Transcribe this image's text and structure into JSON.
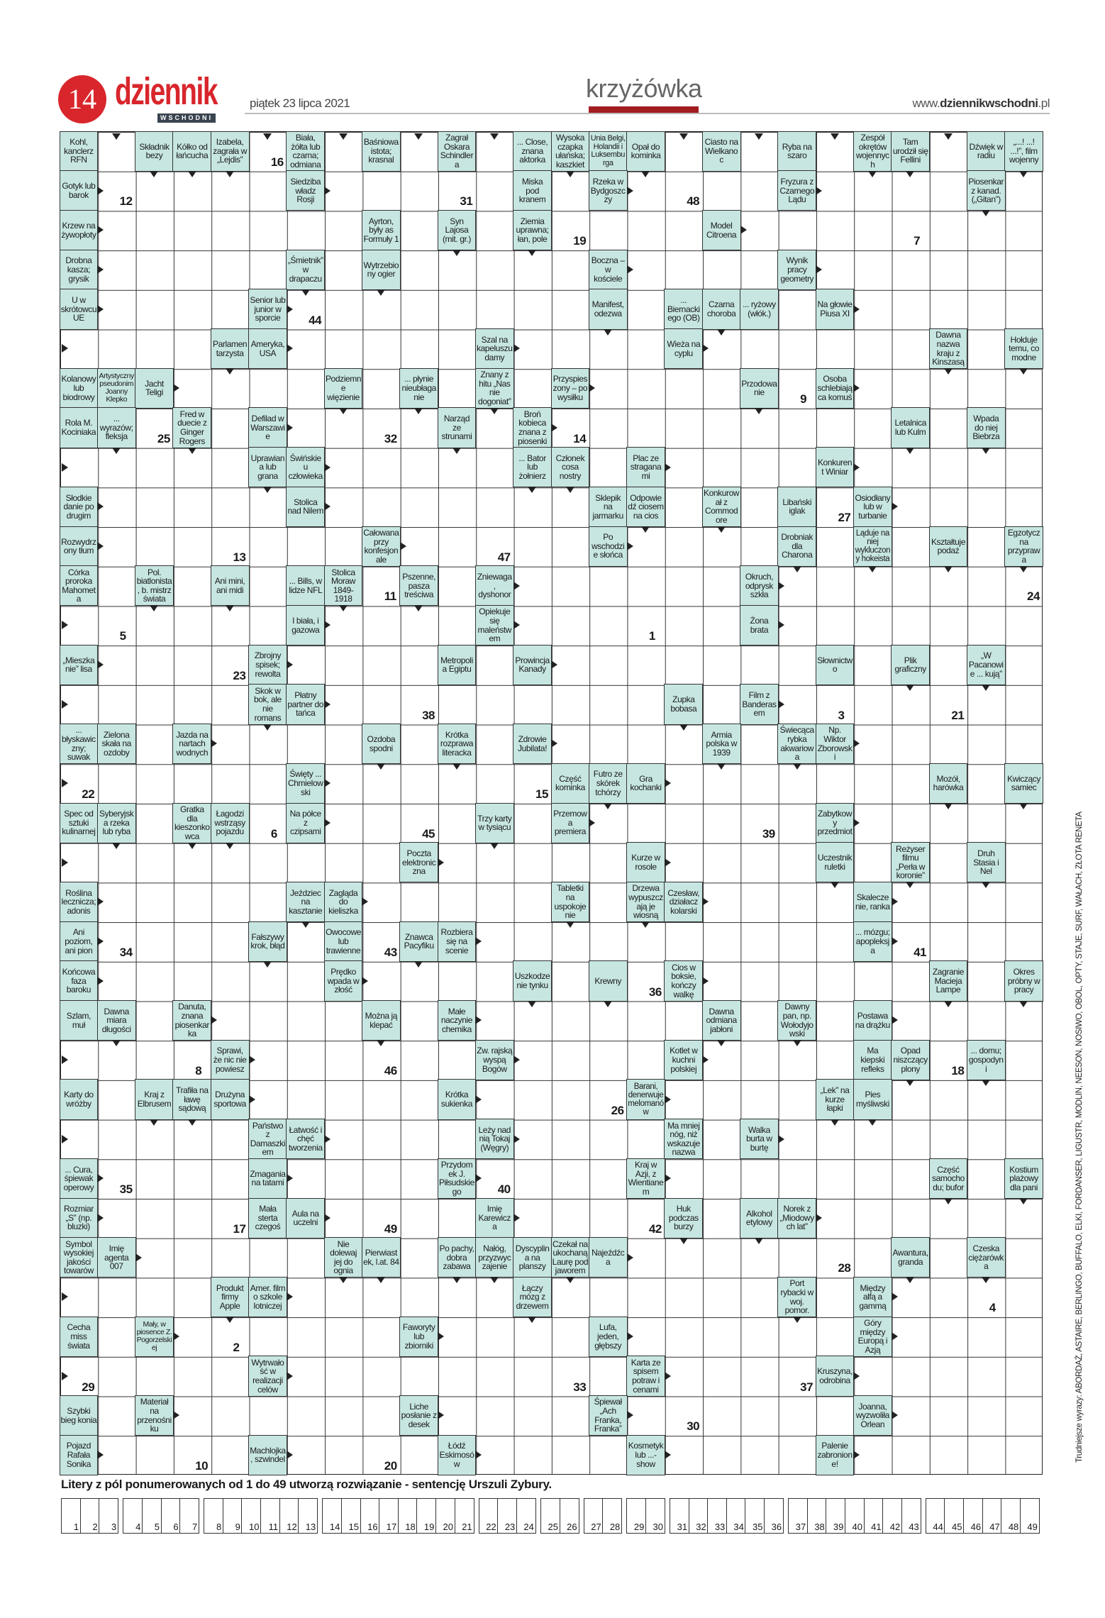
{
  "header": {
    "page_number": "14",
    "logo": "dziennik",
    "logo_sub": "WSCHODNI",
    "date": "piątek 23 lipca 2021",
    "section": "krzyżówka",
    "url_prefix": "www.",
    "url_bold": "dziennikwschodni",
    "url_suffix": ".pl"
  },
  "colors": {
    "brand_red": "#d8262c",
    "clue_cell": "#c7e6e2",
    "section_bar": "#a21d22"
  },
  "clues": [
    "Kohl, kanclerz RFN",
    "Składnik bezy",
    "Kółko od łańcucha",
    "Izabela, zagrała w „Lejdis”",
    "Biała, żółta lub czarna; odmiana",
    "Baśniowa istota; krasnal",
    "Zagrał Oskara Schindlera",
    "... Close, znana aktorka",
    "Wysoka czapka ułańska; kaszkiet",
    "Unia Belgi, Holandii i Luksemburga",
    "Opał do kominka",
    "Ciasto na Wielkanoc",
    "Ryba na szaro",
    "Zespół okrętów wojennych",
    "Tam urodził się Fellini",
    "Dźwięk w radiu",
    "„...! ...! ...!”, film wojenny",
    "Gotyk lub barok",
    "Siedziba władz Rosji",
    "Miska pod kranem",
    "Rzeka w Bydgoszczy",
    "Fryzura z Czarnego Lądu",
    "Piosenkarz kanad. („Gitan”)",
    "Krzew na żywopłoty",
    "Ayrton, były as Formuły 1",
    "Syn Lajosa (mit. gr.)",
    "Ziemia uprawna; łan, pole",
    "Model Citroena",
    "Drobna kasza; grysik",
    "„Śmietnik” w drapaczu",
    "Wytrzebiony ogier",
    "Boczna – w kościele",
    "Wynik pracy geometry",
    "U w skrótowcu UE",
    "Senior lub junior w sporcie",
    "Manifest, odezwa",
    "... Biernackiego (OB)",
    "Czarna choroba",
    "... ryżowy (włók.)",
    "Na głowie Piusa XI",
    "Parlamentarzysta",
    "Ameryka, USA",
    "Szal na kapeluszu damy",
    "Wieża na cyplu",
    "Dawna nazwa kraju z Kinszasą",
    "Hołduje temu, co modne",
    "Kolanowy lub biodrowy",
    "Artystyczny pseudonim Joanny Klepko",
    "Jacht Teligi",
    "Podziemne więzienie",
    "... płynie nieubłaganie",
    "Znany z hitu „Nas nie dogoniat”",
    "Przyspieszony – po wysiłku",
    "Przodowanie",
    "Osoba schlebiająca komuś",
    "Rola M. Kociniaka",
    "... wyrazów; fleksja",
    "Fred w duecie z Ginger Rogers",
    "Defilad w Warszawie",
    "Narząd ze strunami",
    "Broń kobieca znana z piosenki",
    "Letalnica lub Kulm",
    "Wpada do niej Biebrza",
    "Uprawiana lub grana",
    "Świńskie u człowieka",
    "... Bator lub żołnierz",
    "Członek cosa nostry",
    "Plac ze straganami",
    "Konkurent Winiar",
    "Słodkie danie po drugim",
    "Stolica nad Nilem",
    "Sklepik na jarmarku",
    "Odpowiedź ciosem na cios",
    "Konkurował z Commodore",
    "Libański iglak",
    "Osiodłany lub w turbanie",
    "Rozwydrzony tłum",
    "Całowana przy konfesjonale",
    "Po wschodzie słońca",
    "Drobniak dla Charona",
    "Ląduje na niej wykluczony hokeista",
    "Kształtuje podaż",
    "Egzotyczna przyprawa",
    "Córka proroka Mahometa",
    "Pol. biatlonista, b. mistrz świata",
    "Ani mini, ani midi",
    "... Bills, w lidze NFL",
    "Stolica Moraw 1849-1918",
    "Pszenne, pasza treściwa",
    "Zniewaga, dyshonor",
    "Okruch, odprysk szkła",
    "I biała, i gazowa",
    "Opiekuje się maleństwem",
    "Żona brata",
    "„Mieszkanie” lisa",
    "Zbrojny spisek; rewolta",
    "Metropolia Egiptu",
    "Prowincja Kanady",
    "Słownictwo",
    "Plik graficzny",
    "„W Pacanowie ... kują”",
    "Skok w bok, ale nie romans",
    "Płatny partner do tańca",
    "Zupka bobasa",
    "Film z Banderasem",
    "... błyskawiczny; suwak",
    "Zielona skała na ozdoby",
    "Jazda na nartach wodnych",
    "Ozdoba spodni",
    "Krótka rozprawa literacka",
    "Zdrowie Jubilata!",
    "Armia polska w 1939",
    "Świecąca rybka akwariowa",
    "Np. Wiktor Zborowski",
    "Święty ... Chmielowski",
    "Część kominka",
    "Futro ze skórek tchórzy",
    "Gra kochanki",
    "Mozół, harówka",
    "Kwiczący samiec",
    "Spec od sztuki kulinarnej",
    "Syberyjska rzeka lub ryba",
    "Gratka dla kieszonkowca",
    "Łagodzi wstrząsy pojazdu",
    "Na półce z czipsami",
    "Trzy karty w tysiącu",
    "Przemowa premiera",
    "Zabytkowy przedmiot",
    "Poczta elektroniczna",
    "Kurze w rosole",
    "Uczestnik ruletki",
    "Reżyser filmu „Perła w koronie”",
    "Druh Stasia i Nel",
    "Roślina lecznicza; adonis",
    "Jeździec na kasztanie",
    "Zagląda do kieliszka",
    "Tabletki na uspokojenie",
    "Drzewa wypuszczają je wiosną",
    "Czesław, działacz kolarski",
    "Skaleczenie, ranka",
    "Ani poziom, ani pion",
    "Fałszywy krok, błąd",
    "Owocowe lub trawienne",
    "Znawca Pacyfiku",
    "Rozbiera się na scenie",
    "... mózgu; apopleksja",
    "Końcowa faza baroku",
    "Prędko wpada w złość",
    "Uszkodzenie tynku",
    "Krewny",
    "Cios w boksie, kończy walkę",
    "Zagranie Macieja Lampe",
    "Okres próbny w pracy",
    "Szlam, muł",
    "Dawna miara długości",
    "Danuta, znana piosenkarka",
    "Można ją klepać",
    "Małe naczynie chemika",
    "Dawna odmiana jabłoni",
    "Dawny pan, np. Wołodyjowski",
    "Postawa na drążku",
    "Sprawi, że nic nie powiesz",
    "Zw. rajską wyspą Bogów",
    "Kotlet w kuchni polskiej",
    "Ma kiepski refleks",
    "Opad niszczący plony",
    "... domu; gospodyni",
    "Karty do wróżby",
    "Kraj z Elbrusem",
    "Trafiła na ławę sądową",
    "Drużyna sportowa",
    "Krótka sukienka",
    "Barani, denerwuje melomanów",
    "„Lek” na kurze łapki",
    "Pies myśliwski",
    "Państwo z Damaszkiem",
    "Łatwość i chęć tworzenia",
    "Leży nad nią Tokaj (Węgry)",
    "Ma mniej nóg, niż wskazuje nazwa",
    "Walka burta w burtę",
    "... Cura, śpiewak operowy",
    "Zmagania na tatami",
    "Przydomek J. Piłsudskiego",
    "Kraj w Azji, z Wientianem",
    "Część samochodu; bufor",
    "Kostium plażowy dla pani",
    "Rozmiar „S” (np. bluzki)",
    "Mała sterta czegoś",
    "Aula na uczelni",
    "Imię Karewicza",
    "Huk podczas burzy",
    "Alkohol etylowy",
    "Norek z „Miodowych lat”",
    "Symbol wysokiej jakości towarów",
    "Imię agenta 007",
    "Nie dolewaj jej do ognia",
    "Pierwiastek, l.at. 84",
    "Po pachy, dobra zabawa",
    "Nałóg, przyzwyczajenie",
    "Dyscyplina na planszy",
    "Czekał na ukochaną Laurę pod jaworem",
    "Najeźdźca",
    "Awantura, granda",
    "Czeska ciężarówka",
    "Produkt firmy Apple",
    "Amer. film o szkole lotniczej",
    "Łączy mózg z drzewem",
    "Port rybacki w woj. pomor.",
    "Między alfą a gammą",
    "Cecha miss świata",
    "Mały, w piosence Z. Pogorzelskiej",
    "Faworyty lub zbiorniki",
    "Lufa, jeden, głębszy",
    "Góry między Europą i Azją",
    "Wytrwałość w realizacji celów",
    "Karta ze spisem potraw i cenami",
    "Kruszyna, odrobina",
    "Szybki bieg konia",
    "Materiał na przenośniku",
    "Liche posłanie z desek",
    "Śpiewał „Ach Franka, Franka”",
    "Joanna, wyzwoliła Orlean",
    "Pojazd Rafała Sonika",
    "Machlojka, szwindel",
    "Łódź Eskimosów",
    "Kosmetyk lub ...-show",
    "Palenie zabronione!"
  ],
  "cell_numbers": [
    "16",
    "12",
    "31",
    "48",
    "19",
    "7",
    "44",
    "9",
    "25",
    "32",
    "14",
    "27",
    "13",
    "47",
    "11",
    "24",
    "5",
    "1",
    "23",
    "38",
    "3",
    "21",
    "22",
    "15",
    "6",
    "45",
    "39",
    "34",
    "43",
    "41",
    "36",
    "8",
    "46",
    "18",
    "26",
    "35",
    "40",
    "17",
    "49",
    "42",
    "28",
    "4",
    "2",
    "29",
    "33",
    "37",
    "30",
    "10",
    "20"
  ],
  "footer": {
    "instruction": "Litery z pól ponumerowanych od 1 do 49 utworzą rozwiązanie - sentencję Urszuli Zybury.",
    "solution_groups": [
      [
        "1",
        "2",
        "3"
      ],
      [
        "4",
        "5",
        "6",
        "7"
      ],
      [
        "8",
        "9",
        "10",
        "11",
        "12",
        "13"
      ],
      [
        "14",
        "15",
        "16",
        "17",
        "18",
        "19",
        "20",
        "21"
      ],
      [
        "22",
        "23",
        "24"
      ],
      [
        "25",
        "26"
      ],
      [
        "27",
        "28"
      ],
      [
        "29",
        "30"
      ],
      [
        "31",
        "32",
        "33",
        "34",
        "35",
        "36"
      ],
      [
        "37",
        "38",
        "39",
        "40",
        "41",
        "42",
        "43"
      ],
      [
        "44",
        "45",
        "46",
        "47",
        "48",
        "49"
      ]
    ]
  },
  "side_note": "Trudniejsze wyrazy: ABORDAŻ, ASTAIRE, BERLINGO, BUFFALO, ELKI, FORDANSER, LIGUSTR, MODLIN, NEESON, NOSIWO, OBOL, OPTY, STAJE, SURF, WAŁACH, ZŁOTA RENETA"
}
